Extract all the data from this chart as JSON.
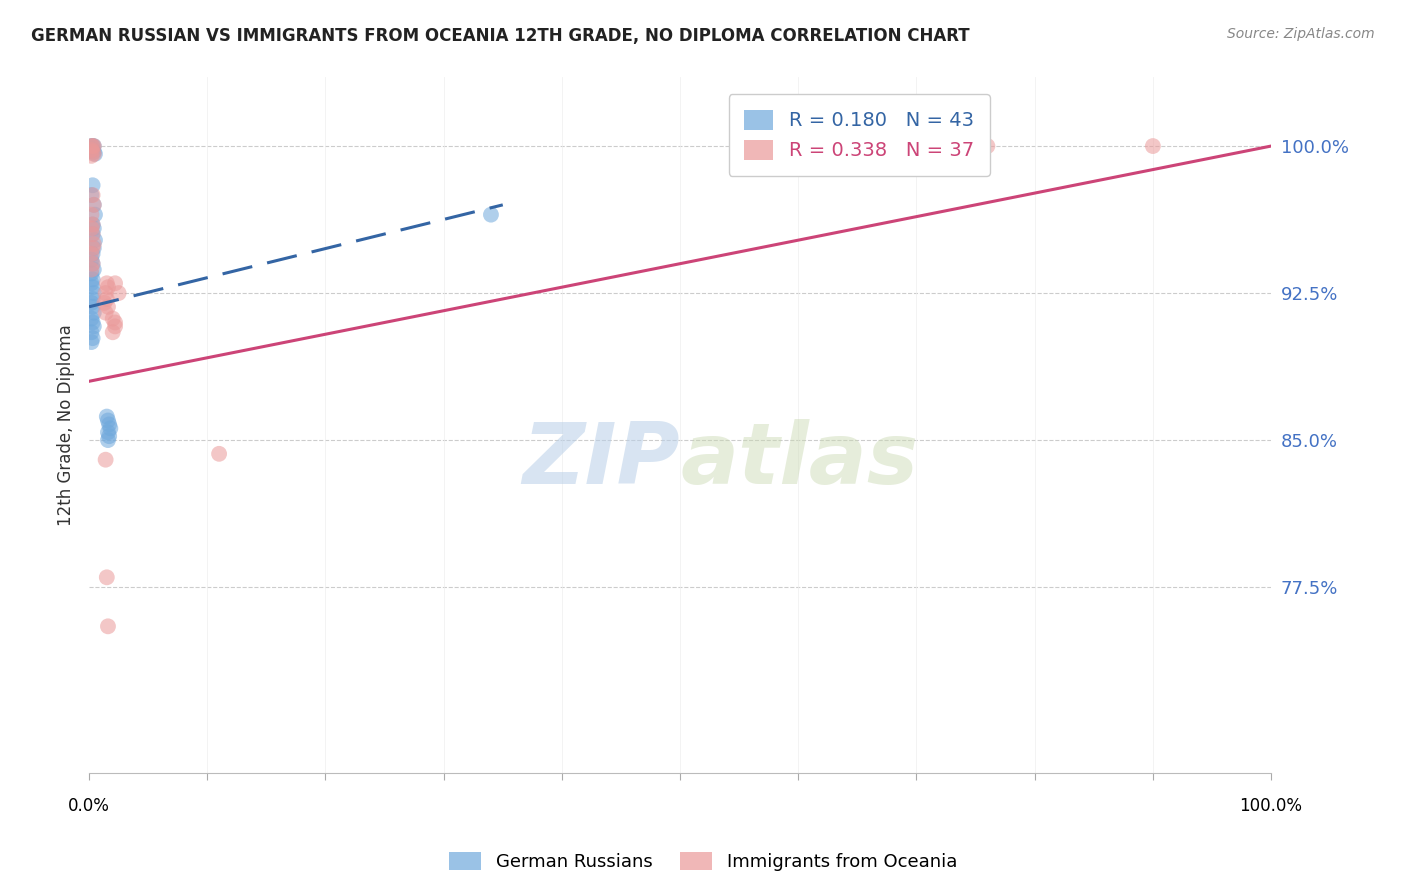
{
  "title": "GERMAN RUSSIAN VS IMMIGRANTS FROM OCEANIA 12TH GRADE, NO DIPLOMA CORRELATION CHART",
  "source": "Source: ZipAtlas.com",
  "ylabel": "12th Grade, No Diploma",
  "ytick_labels": [
    "77.5%",
    "85.0%",
    "92.5%",
    "100.0%"
  ],
  "ytick_values": [
    0.775,
    0.85,
    0.925,
    1.0
  ],
  "xlim": [
    0.0,
    1.0
  ],
  "ylim": [
    0.68,
    1.035
  ],
  "blue_R": 0.18,
  "blue_N": 43,
  "pink_R": 0.338,
  "pink_N": 37,
  "blue_color": "#6fa8dc",
  "pink_color": "#ea9999",
  "blue_line_color": "#3465a4",
  "pink_line_color": "#cc4477",
  "legend_label_blue": "German Russians",
  "legend_label_pink": "Immigrants from Oceania",
  "watermark_zip": "ZIP",
  "watermark_atlas": "atlas",
  "blue_dots_x": [
    0.002,
    0.003,
    0.004,
    0.002,
    0.003,
    0.004,
    0.005,
    0.003,
    0.002,
    0.004,
    0.005,
    0.003,
    0.004,
    0.003,
    0.005,
    0.004,
    0.003,
    0.002,
    0.003,
    0.004,
    0.002,
    0.003,
    0.002,
    0.003,
    0.004,
    0.003,
    0.002,
    0.003,
    0.004,
    0.002,
    0.003,
    0.004,
    0.002,
    0.003,
    0.002,
    0.015,
    0.016,
    0.017,
    0.018,
    0.016,
    0.017,
    0.016,
    0.34
  ],
  "blue_dots_y": [
    1.0,
    1.0,
    1.0,
    0.999,
    0.998,
    0.997,
    0.996,
    0.98,
    0.975,
    0.97,
    0.965,
    0.96,
    0.958,
    0.955,
    0.952,
    0.948,
    0.945,
    0.942,
    0.94,
    0.937,
    0.935,
    0.932,
    0.93,
    0.928,
    0.925,
    0.922,
    0.92,
    0.918,
    0.915,
    0.912,
    0.91,
    0.908,
    0.905,
    0.902,
    0.9,
    0.862,
    0.86,
    0.858,
    0.856,
    0.854,
    0.852,
    0.85,
    0.965
  ],
  "pink_dots_x": [
    0.002,
    0.003,
    0.004,
    0.002,
    0.003,
    0.004,
    0.002,
    0.003,
    0.004,
    0.002,
    0.003,
    0.002,
    0.003,
    0.004,
    0.003,
    0.002,
    0.003,
    0.002,
    0.015,
    0.016,
    0.014,
    0.015,
    0.013,
    0.016,
    0.014,
    0.02,
    0.022,
    0.11,
    0.02,
    0.022,
    0.015,
    0.016,
    0.76,
    0.9,
    0.022,
    0.025,
    0.014
  ],
  "pink_dots_y": [
    1.0,
    1.0,
    1.0,
    0.998,
    0.997,
    0.996,
    0.995,
    0.975,
    0.97,
    0.965,
    0.96,
    0.958,
    0.955,
    0.95,
    0.948,
    0.945,
    0.94,
    0.937,
    0.93,
    0.928,
    0.925,
    0.922,
    0.92,
    0.918,
    0.915,
    0.912,
    0.91,
    0.843,
    0.905,
    0.908,
    0.78,
    0.755,
    1.0,
    1.0,
    0.93,
    0.925,
    0.84
  ],
  "blue_line_x": [
    0.0,
    0.35
  ],
  "blue_line_y": [
    0.918,
    0.97
  ],
  "pink_line_x": [
    0.0,
    1.0
  ],
  "pink_line_y": [
    0.88,
    1.0
  ]
}
